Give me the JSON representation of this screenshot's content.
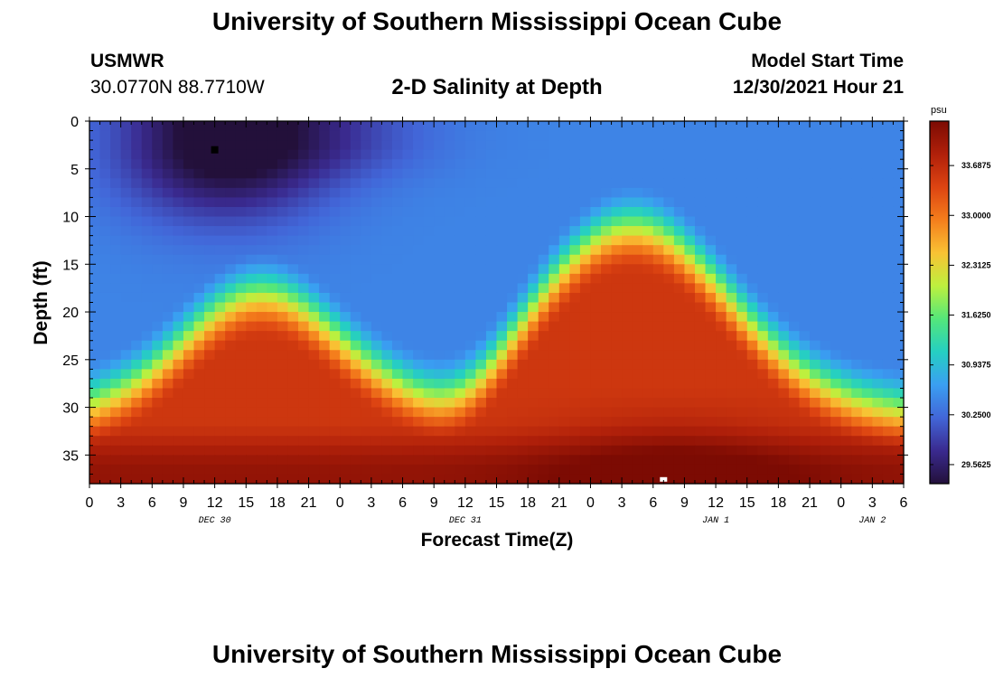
{
  "header": {
    "title": "University of Southern Mississippi Ocean Cube",
    "station_id": "USMWR",
    "station_coords": "30.0770N  88.7710W",
    "plot_title": "2-D Salinity at Depth",
    "start_label": "Model Start Time",
    "start_value": "12/30/2021 Hour 21"
  },
  "footer": {
    "title": "University of Southern Mississippi Ocean Cube"
  },
  "chart_data": {
    "type": "heatmap",
    "title": "2-D Salinity at Depth",
    "xlabel": "Forecast Time(Z)",
    "ylabel": "Depth (ft)",
    "x_tick_labels": [
      "0",
      "3",
      "6",
      "9",
      "12",
      "15",
      "18",
      "21",
      "0",
      "3",
      "6",
      "9",
      "12",
      "15",
      "18",
      "21",
      "0",
      "3",
      "6",
      "9",
      "12",
      "15",
      "18",
      "21",
      "0",
      "3",
      "6"
    ],
    "x_range_hours": [
      0,
      78
    ],
    "day_labels": [
      {
        "label": "DEC 30",
        "hour": 12
      },
      {
        "label": "DEC 31",
        "hour": 36
      },
      {
        "label": "JAN 1",
        "hour": 60
      },
      {
        "label": "JAN 2",
        "hour": 75
      }
    ],
    "y_ticks": [
      0,
      5,
      10,
      15,
      20,
      25,
      30,
      35
    ],
    "y_range_ft": [
      0,
      38
    ],
    "y_inverted": true,
    "colorbar": {
      "unit": "psu",
      "min": 29.3,
      "max": 34.3,
      "tick_labels": [
        "33.6875",
        "33.0000",
        "32.3125",
        "31.6250",
        "30.9375",
        "30.2500",
        "29.5625"
      ],
      "tick_values": [
        33.6875,
        33.0,
        32.3125,
        31.625,
        30.9375,
        30.25,
        29.5625
      ],
      "colormap": [
        "#23103a",
        "#3a2a8f",
        "#4266d8",
        "#3a9ff2",
        "#25cfc2",
        "#54e77a",
        "#bdf03e",
        "#f9c234",
        "#f47e1c",
        "#dd4412",
        "#b0200a",
        "#7c0b03"
      ]
    },
    "surface_feature": {
      "description_values": {
        "fresh_core_min_psu": 29.4,
        "fresh_core_hour": 12,
        "fresh_core_depth_ft": 3
      }
    },
    "markers": [
      {
        "name": "min-marker",
        "hour": 12,
        "depth_ft": 3,
        "color": "#000000"
      },
      {
        "name": "max-marker",
        "hour": 55,
        "depth_ft": 37.7,
        "color": "#ffffff"
      }
    ]
  }
}
